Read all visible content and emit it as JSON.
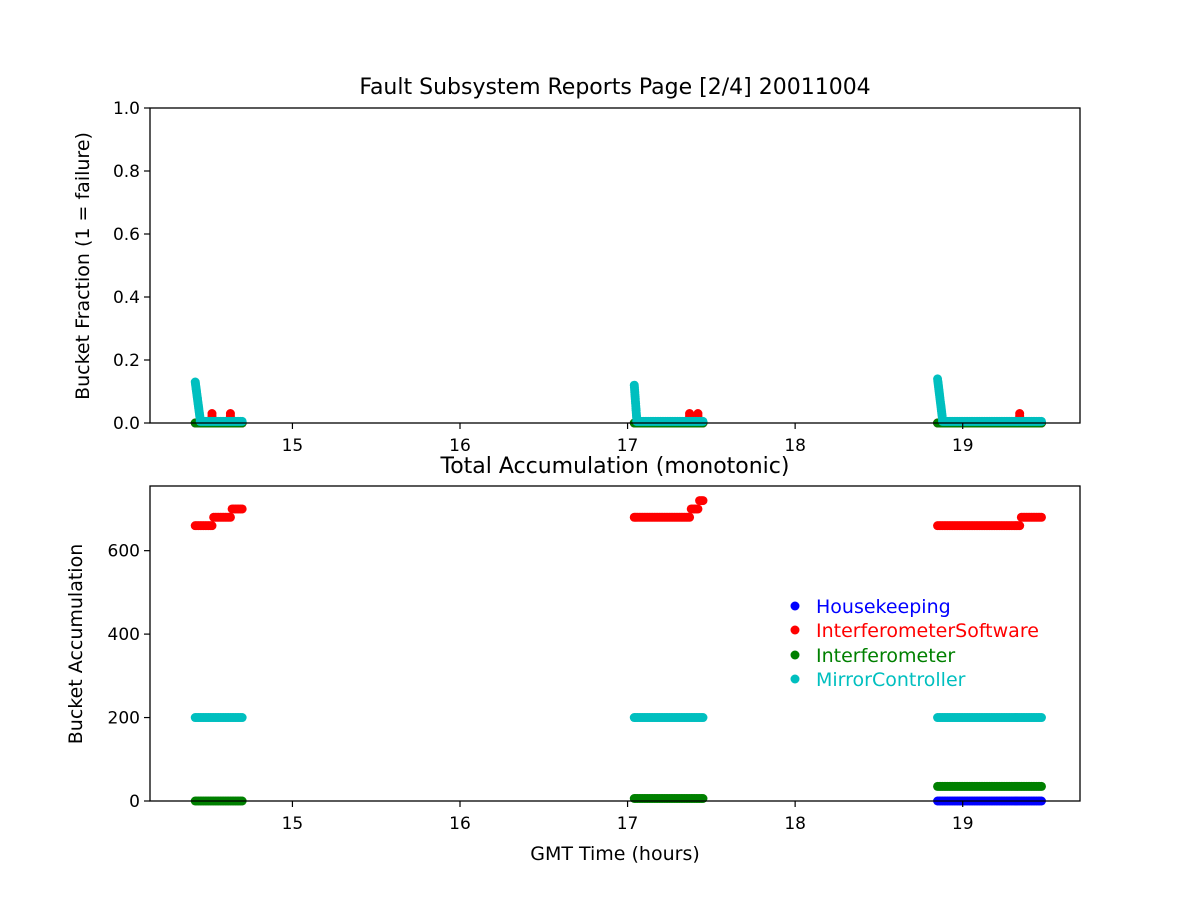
{
  "chart_data": [
    {
      "type": "scatter",
      "title": "Fault Subsystem Reports Page [2/4] 20011004",
      "xlabel": "",
      "ylabel": "Bucket Fraction (1 = failure)",
      "xlim": [
        14.15,
        19.7
      ],
      "ylim": [
        0,
        1.0
      ],
      "xticks": [
        15,
        16,
        17,
        18,
        19
      ],
      "yticks": [
        0.0,
        0.2,
        0.4,
        0.6,
        0.8,
        1.0
      ],
      "ytick_labels": [
        "0.0",
        "0.2",
        "0.4",
        "0.6",
        "0.8",
        "1.0"
      ],
      "grid": false,
      "series": [
        {
          "color": "#0000ff",
          "segments": [
            {
              "x": [
                14.42,
                14.7
              ],
              "y": [
                0,
                0
              ],
              "step": 0.01
            },
            {
              "x": [
                17.04,
                17.45
              ],
              "y": [
                0,
                0
              ],
              "step": 0.01
            },
            {
              "x": [
                18.85,
                19.47
              ],
              "y": [
                0,
                0
              ],
              "step": 0.01
            }
          ],
          "points": []
        },
        {
          "color": "#ff0000",
          "segments": [
            {
              "x": [
                14.42,
                14.7
              ],
              "y": [
                0,
                0
              ],
              "step": 0.01
            },
            {
              "x": [
                17.04,
                17.45
              ],
              "y": [
                0,
                0
              ],
              "step": 0.01
            },
            {
              "x": [
                18.85,
                19.47
              ],
              "y": [
                0,
                0
              ],
              "step": 0.01
            }
          ],
          "points": [
            {
              "x": 14.52,
              "y": 0.03
            },
            {
              "x": 14.52,
              "y": 0.022
            },
            {
              "x": 14.63,
              "y": 0.03
            },
            {
              "x": 14.63,
              "y": 0.022
            },
            {
              "x": 17.37,
              "y": 0.03
            },
            {
              "x": 17.37,
              "y": 0.022
            },
            {
              "x": 17.42,
              "y": 0.03
            },
            {
              "x": 17.42,
              "y": 0.022
            },
            {
              "x": 19.34,
              "y": 0.03
            },
            {
              "x": 19.34,
              "y": 0.022
            }
          ]
        },
        {
          "color": "#008000",
          "segments": [
            {
              "x": [
                14.42,
                14.7
              ],
              "y": [
                0,
                0
              ],
              "step": 0.01
            },
            {
              "x": [
                17.04,
                17.45
              ],
              "y": [
                0,
                0
              ],
              "step": 0.01
            },
            {
              "x": [
                18.85,
                19.47
              ],
              "y": [
                0,
                0
              ],
              "step": 0.01
            }
          ],
          "points": []
        },
        {
          "color": "#00bfbf",
          "segments": [
            {
              "x": [
                14.42,
                14.45
              ],
              "y": [
                0.13,
                0.01
              ],
              "step": 0.0015
            },
            {
              "x": [
                14.45,
                14.7
              ],
              "y": [
                0.005,
                0.005
              ],
              "step": 0.01
            },
            {
              "x": [
                17.04,
                17.055
              ],
              "y": [
                0.12,
                0.01
              ],
              "step": 0.001
            },
            {
              "x": [
                17.055,
                17.45
              ],
              "y": [
                0.005,
                0.005
              ],
              "step": 0.01
            },
            {
              "x": [
                18.85,
                18.88
              ],
              "y": [
                0.14,
                0.01
              ],
              "step": 0.0015
            },
            {
              "x": [
                18.88,
                19.47
              ],
              "y": [
                0.005,
                0.005
              ],
              "step": 0.01
            }
          ],
          "points": []
        }
      ]
    },
    {
      "type": "scatter",
      "title": "Total Accumulation (monotonic)",
      "xlabel": "GMT Time (hours)",
      "ylabel": "Bucket Accumulation",
      "xlim": [
        14.15,
        19.7
      ],
      "ylim": [
        0,
        755
      ],
      "xticks": [
        15,
        16,
        17,
        18,
        19
      ],
      "yticks": [
        0,
        200,
        400,
        600
      ],
      "ytick_labels": [
        "0",
        "200",
        "400",
        "600"
      ],
      "grid": false,
      "legend_position": "center-right",
      "series": [
        {
          "name": "Housekeeping",
          "color": "#0000ff",
          "segments": [
            {
              "x": [
                18.85,
                19.47
              ],
              "y": [
                0,
                0
              ],
              "step": 0.01
            }
          ],
          "points": []
        },
        {
          "name": "InterferometerSoftware",
          "color": "#ff0000",
          "segments": [
            {
              "x": [
                14.42,
                14.52
              ],
              "y": [
                660,
                660
              ],
              "step": 0.01
            },
            {
              "x": [
                14.53,
                14.63
              ],
              "y": [
                680,
                680
              ],
              "step": 0.01
            },
            {
              "x": [
                14.64,
                14.7
              ],
              "y": [
                700,
                700
              ],
              "step": 0.01
            },
            {
              "x": [
                17.04,
                17.37
              ],
              "y": [
                680,
                680
              ],
              "step": 0.01
            },
            {
              "x": [
                17.38,
                17.42
              ],
              "y": [
                700,
                700
              ],
              "step": 0.01
            },
            {
              "x": [
                17.43,
                17.45
              ],
              "y": [
                720,
                720
              ],
              "step": 0.01
            },
            {
              "x": [
                18.85,
                19.34
              ],
              "y": [
                660,
                660
              ],
              "step": 0.01
            },
            {
              "x": [
                19.35,
                19.47
              ],
              "y": [
                680,
                680
              ],
              "step": 0.01
            }
          ],
          "points": []
        },
        {
          "name": "Interferometer",
          "color": "#008000",
          "segments": [
            {
              "x": [
                14.42,
                14.7
              ],
              "y": [
                0,
                0
              ],
              "step": 0.01
            },
            {
              "x": [
                17.04,
                17.45
              ],
              "y": [
                6,
                6
              ],
              "step": 0.01
            },
            {
              "x": [
                18.85,
                19.47
              ],
              "y": [
                35,
                35
              ],
              "step": 0.01
            }
          ],
          "points": []
        },
        {
          "name": "MirrorController",
          "color": "#00bfbf",
          "segments": [
            {
              "x": [
                14.42,
                14.7
              ],
              "y": [
                200,
                200
              ],
              "step": 0.01
            },
            {
              "x": [
                17.04,
                17.45
              ],
              "y": [
                200,
                200
              ],
              "step": 0.01
            },
            {
              "x": [
                18.85,
                19.47
              ],
              "y": [
                200,
                200
              ],
              "step": 0.01
            }
          ],
          "points": []
        }
      ]
    }
  ]
}
